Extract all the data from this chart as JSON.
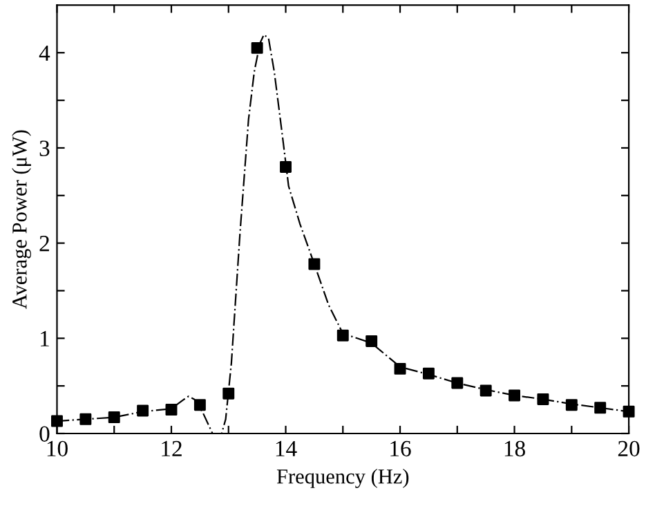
{
  "chart_data": {
    "type": "scatter",
    "xlabel": "Frequency (Hz)",
    "ylabel": "Average Power (μW)",
    "xlim": [
      10,
      20
    ],
    "ylim": [
      0,
      4.5
    ],
    "xticks": [
      10,
      {
        "value": 11,
        "label": null
      },
      12,
      {
        "value": 13,
        "label": null
      },
      14,
      {
        "value": 15,
        "label": null
      },
      16,
      {
        "value": 17,
        "label": null
      },
      18,
      {
        "value": 19,
        "label": null
      },
      20
    ],
    "yticks": [
      0,
      {
        "value": 0.5,
        "label": null
      },
      1,
      {
        "value": 1.5,
        "label": null
      },
      2,
      {
        "value": 2.5,
        "label": null
      },
      3,
      {
        "value": 3.5,
        "label": null
      },
      4
    ],
    "grid": false,
    "legend": false,
    "series": [
      {
        "type": "line",
        "color": "#000000",
        "line_style": "dashed",
        "marker": "none",
        "x": [
          10,
          10.5,
          11,
          11.5,
          12,
          12.2,
          12.3,
          12.4,
          12.55,
          12.72,
          12.88,
          12.95,
          13.05,
          13.2,
          13.35,
          13.45,
          13.55,
          13.62,
          13.7,
          13.8,
          13.95,
          14.05,
          14.25,
          14.5,
          14.75,
          15,
          15.25,
          15.5,
          16,
          16.5,
          17,
          17.5,
          18,
          18.5,
          19,
          19.5,
          20
        ],
        "values": [
          0.13,
          0.15,
          0.17,
          0.23,
          0.26,
          0.35,
          0.39,
          0.36,
          0.22,
          0,
          0,
          0.15,
          0.74,
          2.1,
          3.3,
          3.8,
          4.1,
          4.19,
          4.15,
          3.8,
          3.09,
          2.6,
          2.2,
          1.78,
          1.35,
          1.05,
          1.0,
          0.95,
          0.7,
          0.62,
          0.53,
          0.46,
          0.4,
          0.36,
          0.31,
          0.27,
          0.23
        ]
      },
      {
        "color": "#000000",
        "marker": "square",
        "x": [
          10,
          10.5,
          11,
          11.5,
          12,
          12.5,
          13,
          13.5,
          14,
          14.5,
          15,
          15.5,
          16,
          16.5,
          17,
          17.5,
          18,
          18.5,
          19,
          19.5,
          20
        ],
        "values": [
          0.13,
          0.15,
          0.17,
          0.24,
          0.25,
          0.3,
          0.42,
          4.05,
          2.8,
          1.78,
          1.03,
          0.97,
          0.68,
          0.63,
          0.53,
          0.45,
          0.4,
          0.36,
          0.3,
          0.27,
          0.23
        ]
      }
    ]
  }
}
